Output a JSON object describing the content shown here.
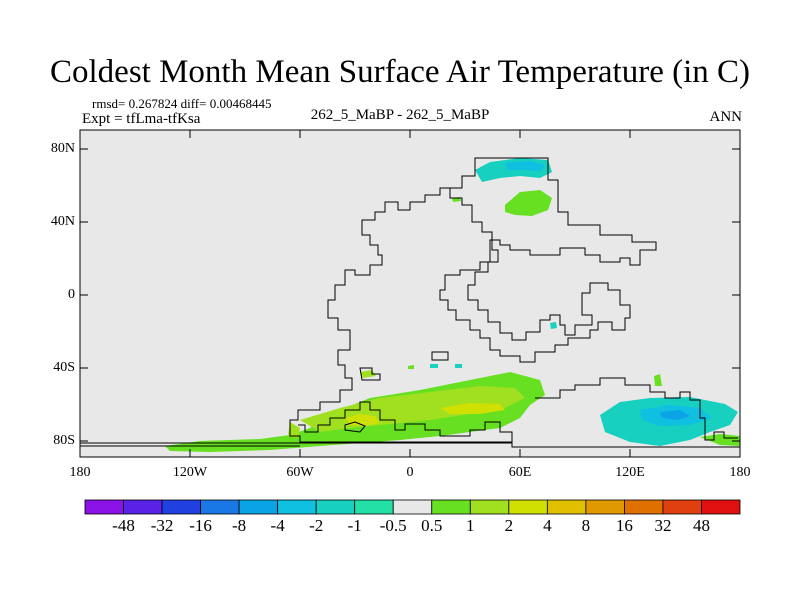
{
  "plot": {
    "title": "Coldest Month Mean Surface Air Temperature (in C)",
    "rmsd_text": "rmsd= 0.267824 diff= 0.00468445",
    "expt_text": "Expt = tfLma-tfKsa",
    "case_text": "262_5_MaBP - 262_5_MaBP",
    "season": "ANN"
  },
  "axes": {
    "lat_labels": [
      "80N",
      "40N",
      "0",
      "40S",
      "80S"
    ],
    "lon_labels": [
      "180",
      "120W",
      "60W",
      "0",
      "60E",
      "120E",
      "180"
    ]
  },
  "colorbar": {
    "labels": [
      "-48",
      "-32",
      "-16",
      "-8",
      "-4",
      "-2",
      "-1",
      "-0.5",
      "0.5",
      "1",
      "2",
      "4",
      "8",
      "16",
      "32",
      "48"
    ],
    "colors": [
      "#8a12e6",
      "#5a22e6",
      "#2040e0",
      "#1a78e6",
      "#0aa3e6",
      "#10c0e0",
      "#18d0c0",
      "#22e0a6",
      "#e8e8e8",
      "#66e020",
      "#a0e020",
      "#d0e000",
      "#e0c000",
      "#e09a00",
      "#e07000",
      "#e04010",
      "#e01010"
    ]
  },
  "map": {
    "background": "#e8e8e8",
    "anomaly_regions": [
      {
        "name": "arctic-cooling",
        "category": "-1 to -0.5"
      },
      {
        "name": "siberia-warming",
        "category": "0.5 to 1"
      },
      {
        "name": "southern-ocean-warming",
        "category": "0.5 to 2"
      },
      {
        "name": "southern-ocean-warming-core",
        "category": "2 to 4"
      },
      {
        "name": "australia-south-cooling",
        "category": "-1 to -0.5"
      },
      {
        "name": "antarctic-coast-warming",
        "category": "0.5 to 1"
      }
    ]
  }
}
